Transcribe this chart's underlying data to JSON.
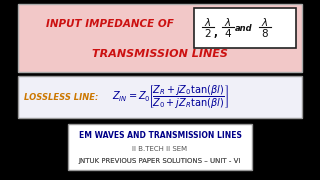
{
  "bg_color": "#000000",
  "top_box_bg": "#f2c8c8",
  "top_box_edge": "#aaaaaa",
  "title_color": "#cc1111",
  "title_line1": "INPUT IMPEDANCE OF",
  "title_line2": "TRANSMISSION LINES",
  "formula_box_bg": "#f0f0f8",
  "formula_box_edge": "#999999",
  "formula_label_color": "#cc7700",
  "formula_eq_color": "#000099",
  "bottom_box_bg": "#ffffff",
  "bottom_box_edge": "#999999",
  "bottom_line1": "EM WAVES AND TRANSMISSION LINES",
  "bottom_line2": "II B.TECH II SEM",
  "bottom_line3_prefix": "JNTUK PREVIOUS PAPER SOLUTIONS – ",
  "bottom_line3_unit": "UNIT - VI",
  "bottom_color1": "#000088",
  "bottom_color2": "#555555",
  "bottom_color3a": "#555555",
  "bottom_color3b": "#cc0000",
  "lambda_box_bg": "#ffffff",
  "lambda_box_edge": "#222222",
  "figw": 3.2,
  "figh": 1.8,
  "dpi": 100
}
